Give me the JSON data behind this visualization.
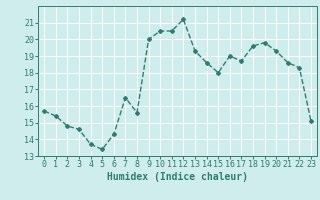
{
  "x": [
    0,
    1,
    2,
    3,
    4,
    5,
    6,
    7,
    8,
    9,
    10,
    11,
    12,
    13,
    14,
    15,
    16,
    17,
    18,
    19,
    20,
    21,
    22,
    23
  ],
  "y": [
    15.7,
    15.4,
    14.8,
    14.6,
    13.7,
    13.4,
    14.3,
    16.5,
    15.6,
    20.0,
    20.5,
    20.5,
    21.2,
    19.3,
    18.6,
    18.0,
    19.0,
    18.7,
    19.6,
    19.8,
    19.3,
    18.6,
    18.3,
    15.1
  ],
  "line_color": "#2e7d6e",
  "marker": "D",
  "marker_size": 2,
  "bg_color": "#d0eded",
  "grid_color": "#ffffff",
  "tick_color": "#2e7d6e",
  "xlabel": "Humidex (Indice chaleur)",
  "ylim": [
    13,
    22
  ],
  "yticks": [
    13,
    14,
    15,
    16,
    17,
    18,
    19,
    20,
    21
  ],
  "xticks": [
    0,
    1,
    2,
    3,
    4,
    5,
    6,
    7,
    8,
    9,
    10,
    11,
    12,
    13,
    14,
    15,
    16,
    17,
    18,
    19,
    20,
    21,
    22,
    23
  ],
  "xlabel_fontsize": 7,
  "tick_fontsize": 6,
  "line_width": 1.0
}
